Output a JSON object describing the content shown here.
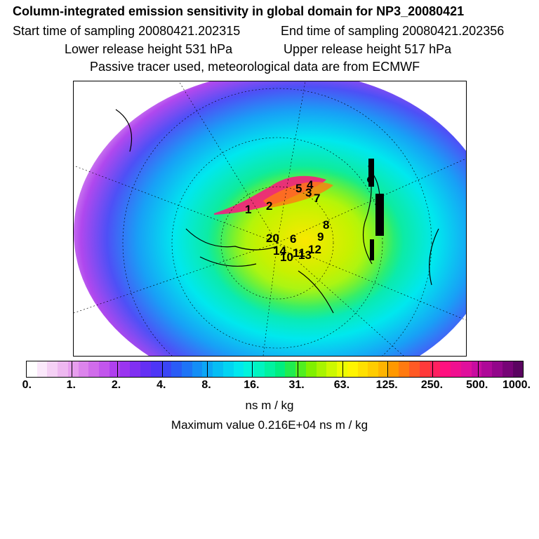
{
  "header": {
    "title": "Column-integrated emission sensitivity in global domain for NP3_20080421",
    "start_time": "Start time of sampling 20080421.202315",
    "end_time": "End time of sampling 20080421.202356",
    "lower_height": "Lower release height  531 hPa",
    "upper_height": "Upper release height  517 hPa",
    "tracer_note": "Passive tracer used, meteorological data are from ECMWF"
  },
  "map": {
    "trajectory_labels": [
      "1",
      "2",
      "3",
      "4",
      "5",
      "6",
      "7",
      "8",
      "9",
      "10",
      "11",
      "12",
      "13",
      "14",
      "20"
    ]
  },
  "colorbar": {
    "colors": [
      "#ffffff",
      "#fbe8fb",
      "#f5d0f5",
      "#eeb8f0",
      "#e79eee",
      "#dc84ec",
      "#d06cea",
      "#c256ec",
      "#b040ee",
      "#9a34f0",
      "#8030f2",
      "#6430f4",
      "#4e36f6",
      "#3a46f6",
      "#2a5cf6",
      "#1e74f6",
      "#148ef6",
      "#0ca6f6",
      "#06bef4",
      "#02d4f2",
      "#00e8ee",
      "#00f4dc",
      "#00f4c0",
      "#00f2a0",
      "#00ee80",
      "#20ec50",
      "#50ee20",
      "#80f000",
      "#a8f400",
      "#ccf800",
      "#ecfc00",
      "#fff400",
      "#ffe000",
      "#ffcc00",
      "#ffb400",
      "#ff9800",
      "#ff7a10",
      "#ff5a24",
      "#ff3a3a",
      "#ff2060",
      "#ff1080",
      "#f01090",
      "#e0109c",
      "#c80ca0",
      "#ae0898",
      "#92068a",
      "#760476",
      "#5a0460"
    ],
    "tick_labels": [
      "0.",
      "1.",
      "2.",
      "4.",
      "8.",
      "16.",
      "31.",
      "63.",
      "125.",
      "250.",
      "500.",
      "1000."
    ],
    "units": "ns m / kg",
    "max_value": "Maximum value  0.216E+04 ns m / kg"
  }
}
